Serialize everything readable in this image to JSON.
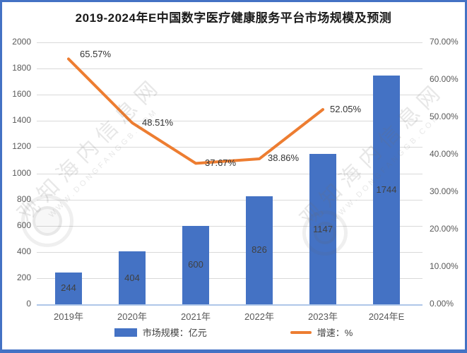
{
  "title": "2019-2024年E中国数字医疗健康服务平台市场规模及预测",
  "colors": {
    "bar": "#4472C4",
    "line": "#ED7D31",
    "border": "#4472C4",
    "grid": "#D9D9D9",
    "axis_text": "#595959",
    "label_text": "#404040"
  },
  "legend": {
    "bar_label": "市场规模：亿元",
    "line_label": "增速：%"
  },
  "watermark": {
    "cn": "观知海内信息网",
    "en": "WWW.DONGFANGGB.COM"
  },
  "chart_data": {
    "type": "combo",
    "categories": [
      "2019年",
      "2020年",
      "2021年",
      "2022年",
      "2023年",
      "2024年E"
    ],
    "series": [
      {
        "name": "市场规模：亿元",
        "type": "bar",
        "axis": "left",
        "values": [
          244,
          404,
          600,
          826,
          1147,
          1744
        ]
      },
      {
        "name": "增速：%",
        "type": "line",
        "axis": "right",
        "values": [
          65.57,
          48.51,
          37.67,
          38.86,
          52.05,
          null
        ],
        "labels": [
          "65.57%",
          "48.51%",
          "37.67%",
          "38.86%",
          "52.05%"
        ]
      }
    ],
    "left_axis": {
      "min": 0,
      "max": 2000,
      "step": 200,
      "ticks": [
        "0",
        "200",
        "400",
        "600",
        "800",
        "1000",
        "1200",
        "1400",
        "1600",
        "1800",
        "2000"
      ]
    },
    "right_axis": {
      "min": 0,
      "max": 70,
      "step": 10,
      "ticks": [
        "0.00%",
        "10.00%",
        "20.00%",
        "30.00%",
        "40.00%",
        "50.00%",
        "60.00%",
        "70.00%"
      ]
    },
    "grid": true,
    "legend_position": "bottom"
  }
}
